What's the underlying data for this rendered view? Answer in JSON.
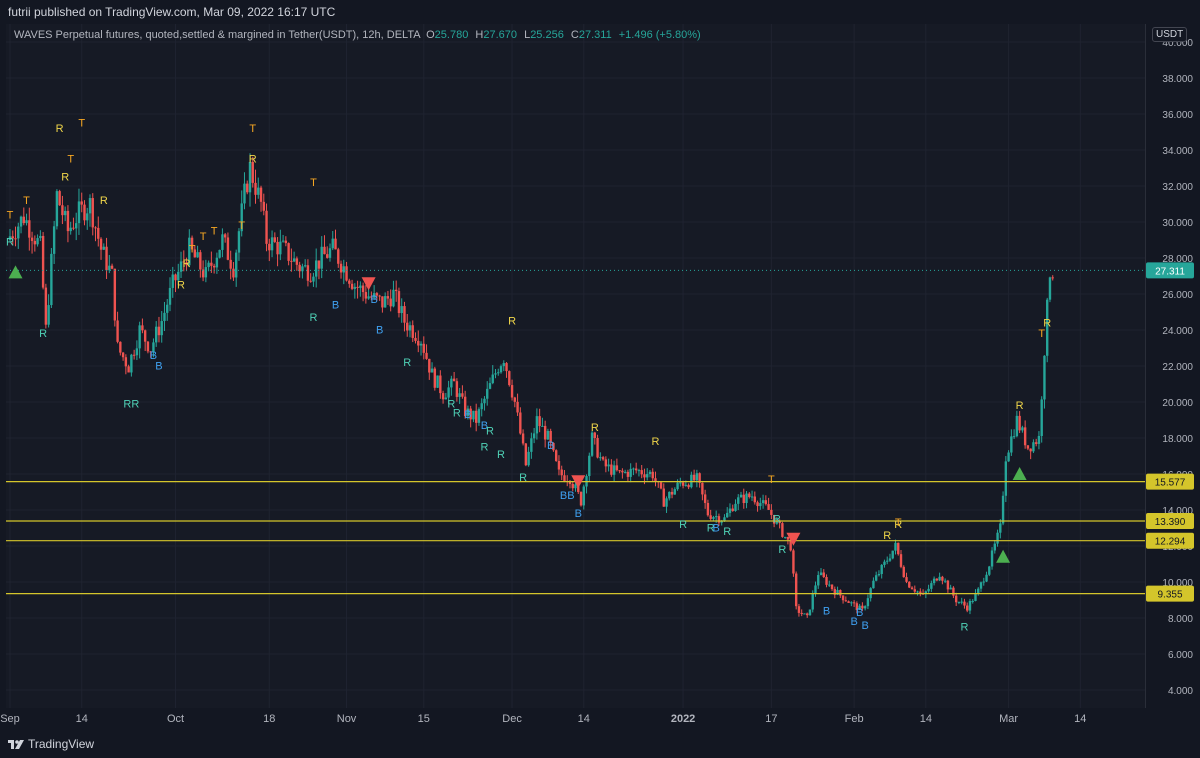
{
  "header": {
    "publisher": "futrii published on TradingView.com, Mar 09, 2022 16:17 UTC"
  },
  "legend": {
    "symbol": "WAVES Perpetual futures, quoted,settled & margined in Tether(USDT), 12h, DELTA",
    "o_label": "O",
    "o": "25.780",
    "h_label": "H",
    "h": "27.670",
    "l_label": "L",
    "l": "25.256",
    "c_label": "C",
    "c": "27.311",
    "change": "+1.496 (+5.80%)"
  },
  "currency": "USDT",
  "footer": {
    "brand": "TradingView"
  },
  "colors": {
    "up": "#26a69a",
    "down": "#ef5350",
    "level": "#d4c52b",
    "current": "#26a69a",
    "label_t": "#f5a623",
    "label_r_gold": "#f0d64a",
    "label_r_teal": "#4fd1b6",
    "label_b": "#3fa0f0"
  },
  "chart_data": {
    "type": "candlestick",
    "timeframe": "12h",
    "y_ticks": [
      4,
      6,
      8,
      10,
      12,
      14,
      16,
      18,
      20,
      22,
      24,
      26,
      28,
      30,
      32,
      34,
      36,
      38,
      40
    ],
    "y_tick_labels": [
      "4.000",
      "6.000",
      "8.000",
      "10.000",
      "12.000",
      "14.000",
      "16.000",
      "18.000",
      "20.000",
      "22.000",
      "24.000",
      "26.000",
      "28.000",
      "30.000",
      "32.000",
      "34.000",
      "36.000",
      "38.000",
      "40.000"
    ],
    "x_ticks": [
      {
        "label": "Sep",
        "x": "2021-09-01"
      },
      {
        "label": "14",
        "x": "2021-09-14"
      },
      {
        "label": "Oct",
        "x": "2021-10-01"
      },
      {
        "label": "18",
        "x": "2021-10-18"
      },
      {
        "label": "Nov",
        "x": "2021-11-01"
      },
      {
        "label": "15",
        "x": "2021-11-15"
      },
      {
        "label": "Dec",
        "x": "2021-12-01"
      },
      {
        "label": "14",
        "x": "2021-12-14"
      },
      {
        "label": "2022",
        "x": "2022-01-01"
      },
      {
        "label": "17",
        "x": "2022-01-17"
      },
      {
        "label": "Feb",
        "x": "2022-02-01"
      },
      {
        "label": "14",
        "x": "2022-02-14"
      },
      {
        "label": "Mar",
        "x": "2022-03-01"
      },
      {
        "label": "14",
        "x": "2022-03-14"
      }
    ],
    "x_range": [
      "2021-09-01",
      "2022-03-25"
    ],
    "ylim": [
      3.0,
      41.0
    ],
    "horizontal_levels": [
      {
        "value": 15.577,
        "label": "15.577"
      },
      {
        "value": 13.39,
        "label": "13.390"
      },
      {
        "value": 12.294,
        "label": "12.294"
      },
      {
        "value": 9.355,
        "label": "9.355"
      }
    ],
    "current_price": {
      "value": 27.311,
      "label": "27.311"
    },
    "trend": [
      [
        "2021-09-01",
        29.0
      ],
      [
        "2021-09-04",
        30.3
      ],
      [
        "2021-09-07",
        28.6
      ],
      [
        "2021-09-08",
        24.0
      ],
      [
        "2021-09-10",
        31.5
      ],
      [
        "2021-09-12",
        29.5
      ],
      [
        "2021-09-14",
        30.5
      ],
      [
        "2021-09-16",
        31.0
      ],
      [
        "2021-09-18",
        28.5
      ],
      [
        "2021-09-20",
        27.0
      ],
      [
        "2021-09-21",
        23.0
      ],
      [
        "2021-09-23",
        22.0
      ],
      [
        "2021-09-25",
        24.0
      ],
      [
        "2021-09-27",
        23.0
      ],
      [
        "2021-09-29",
        24.5
      ],
      [
        "2021-10-01",
        26.5
      ],
      [
        "2021-10-04",
        28.5
      ],
      [
        "2021-10-07",
        27.0
      ],
      [
        "2021-10-10",
        29.0
      ],
      [
        "2021-10-12",
        27.5
      ],
      [
        "2021-10-14",
        31.5
      ],
      [
        "2021-10-15",
        33.0
      ],
      [
        "2021-10-17",
        31.0
      ],
      [
        "2021-10-18",
        29.0
      ],
      [
        "2021-10-21",
        28.5
      ],
      [
        "2021-10-24",
        27.5
      ],
      [
        "2021-10-26",
        27.3
      ],
      [
        "2021-10-28",
        28.0
      ],
      [
        "2021-10-30",
        28.5
      ],
      [
        "2021-11-01",
        27.5
      ],
      [
        "2021-11-03",
        26.5
      ],
      [
        "2021-11-06",
        25.8
      ],
      [
        "2021-11-08",
        25.5
      ],
      [
        "2021-11-10",
        26.0
      ],
      [
        "2021-11-12",
        24.5
      ],
      [
        "2021-11-15",
        23.5
      ],
      [
        "2021-11-17",
        21.5
      ],
      [
        "2021-11-19",
        20.5
      ],
      [
        "2021-11-21",
        21.0
      ],
      [
        "2021-11-23",
        19.5
      ],
      [
        "2021-11-25",
        19.0
      ],
      [
        "2021-11-27",
        20.5
      ],
      [
        "2021-11-29",
        22.0
      ],
      [
        "2021-11-30",
        22.5
      ],
      [
        "2021-12-02",
        20.0
      ],
      [
        "2021-12-04",
        16.5
      ],
      [
        "2021-12-06",
        19.0
      ],
      [
        "2021-12-08",
        18.0
      ],
      [
        "2021-12-10",
        16.0
      ],
      [
        "2021-12-12",
        15.8
      ],
      [
        "2021-12-14",
        14.5
      ],
      [
        "2021-12-16",
        18.0
      ],
      [
        "2021-12-18",
        16.5
      ],
      [
        "2021-12-21",
        16.0
      ],
      [
        "2021-12-24",
        16.2
      ],
      [
        "2021-12-27",
        16.0
      ],
      [
        "2021-12-29",
        14.5
      ],
      [
        "2022-01-01",
        15.5
      ],
      [
        "2022-01-04",
        15.7
      ],
      [
        "2022-01-06",
        13.8
      ],
      [
        "2022-01-09",
        13.5
      ],
      [
        "2022-01-11",
        14.5
      ],
      [
        "2022-01-14",
        14.8
      ],
      [
        "2022-01-17",
        14.0
      ],
      [
        "2022-01-19",
        13.0
      ],
      [
        "2022-01-21",
        12.0
      ],
      [
        "2022-01-22",
        8.5
      ],
      [
        "2022-01-24",
        8.0
      ],
      [
        "2022-01-26",
        10.5
      ],
      [
        "2022-01-29",
        9.5
      ],
      [
        "2022-02-01",
        8.8
      ],
      [
        "2022-02-03",
        8.4
      ],
      [
        "2022-02-05",
        10.0
      ],
      [
        "2022-02-07",
        11.0
      ],
      [
        "2022-02-09",
        12.0
      ],
      [
        "2022-02-11",
        10.0
      ],
      [
        "2022-02-14",
        9.2
      ],
      [
        "2022-02-17",
        10.5
      ],
      [
        "2022-02-20",
        9.0
      ],
      [
        "2022-02-22",
        8.6
      ],
      [
        "2022-02-24",
        9.5
      ],
      [
        "2022-02-26",
        11.0
      ],
      [
        "2022-02-28",
        13.0
      ],
      [
        "2022-03-01",
        17.0
      ],
      [
        "2022-03-03",
        19.0
      ],
      [
        "2022-03-05",
        17.5
      ],
      [
        "2022-03-07",
        18.0
      ],
      [
        "2022-03-08",
        23.0
      ],
      [
        "2022-03-09",
        27.311
      ]
    ],
    "signals": [
      {
        "x": "2021-09-01",
        "y": 30.2,
        "text": "T",
        "type": "T"
      },
      {
        "x": "2021-09-04",
        "y": 31.0,
        "text": "T",
        "type": "T"
      },
      {
        "x": "2021-09-10",
        "y": 35.0,
        "text": "R",
        "type": "Rg"
      },
      {
        "x": "2021-09-12",
        "y": 33.3,
        "text": "T",
        "type": "T"
      },
      {
        "x": "2021-09-14",
        "y": 35.3,
        "text": "T",
        "type": "T"
      },
      {
        "x": "2021-09-11",
        "y": 32.3,
        "text": "R",
        "type": "Rg"
      },
      {
        "x": "2021-09-18",
        "y": 31.0,
        "text": "R",
        "type": "Rg"
      },
      {
        "x": "2021-09-01",
        "y": 28.7,
        "text": "R",
        "type": "Rt"
      },
      {
        "x": "2021-09-07",
        "y": 23.6,
        "text": "R",
        "type": "Rt"
      },
      {
        "x": "2021-09-23",
        "y": 19.7,
        "text": "RR",
        "type": "Rt"
      },
      {
        "x": "2021-09-27",
        "y": 22.4,
        "text": "B",
        "type": "B"
      },
      {
        "x": "2021-09-28",
        "y": 21.8,
        "text": "B",
        "type": "B"
      },
      {
        "x": "2021-10-04",
        "y": 28.3,
        "text": "T",
        "type": "T"
      },
      {
        "x": "2021-10-06",
        "y": 29.0,
        "text": "T",
        "type": "T"
      },
      {
        "x": "2021-10-03",
        "y": 27.5,
        "text": "R",
        "type": "Rg"
      },
      {
        "x": "2021-10-02",
        "y": 26.3,
        "text": "R",
        "type": "Rg"
      },
      {
        "x": "2021-10-08",
        "y": 29.3,
        "text": "T",
        "type": "T"
      },
      {
        "x": "2021-10-13",
        "y": 29.6,
        "text": "T",
        "type": "T"
      },
      {
        "x": "2021-10-15",
        "y": 35.0,
        "text": "T",
        "type": "T"
      },
      {
        "x": "2021-10-15",
        "y": 33.3,
        "text": "R",
        "type": "Rg"
      },
      {
        "x": "2021-10-26",
        "y": 32.0,
        "text": "T",
        "type": "T"
      },
      {
        "x": "2021-10-26",
        "y": 24.5,
        "text": "R",
        "type": "Rt"
      },
      {
        "x": "2021-10-30",
        "y": 25.2,
        "text": "B",
        "type": "B"
      },
      {
        "x": "2021-11-06",
        "y": 25.5,
        "text": "B",
        "type": "B"
      },
      {
        "x": "2021-11-07",
        "y": 23.8,
        "text": "B",
        "type": "B"
      },
      {
        "x": "2021-11-12",
        "y": 22.0,
        "text": "R",
        "type": "Rt"
      },
      {
        "x": "2021-11-20",
        "y": 19.7,
        "text": "R",
        "type": "Rt"
      },
      {
        "x": "2021-11-21",
        "y": 19.2,
        "text": "R",
        "type": "Rt"
      },
      {
        "x": "2021-11-23",
        "y": 19.1,
        "text": "B",
        "type": "B"
      },
      {
        "x": "2021-11-26",
        "y": 18.5,
        "text": "B",
        "type": "B"
      },
      {
        "x": "2021-11-27",
        "y": 18.2,
        "text": "R",
        "type": "Rt"
      },
      {
        "x": "2021-11-26",
        "y": 17.3,
        "text": "R",
        "type": "Rt"
      },
      {
        "x": "2021-11-29",
        "y": 16.9,
        "text": "R",
        "type": "Rt"
      },
      {
        "x": "2021-12-01",
        "y": 24.3,
        "text": "R",
        "type": "Rg"
      },
      {
        "x": "2021-12-03",
        "y": 15.6,
        "text": "R",
        "type": "Rt"
      },
      {
        "x": "2021-12-08",
        "y": 17.4,
        "text": "B",
        "type": "B"
      },
      {
        "x": "2021-12-11",
        "y": 14.6,
        "text": "BB",
        "type": "B"
      },
      {
        "x": "2021-12-13",
        "y": 13.6,
        "text": "B",
        "type": "B"
      },
      {
        "x": "2021-12-16",
        "y": 18.4,
        "text": "R",
        "type": "Rg"
      },
      {
        "x": "2021-12-27",
        "y": 17.6,
        "text": "R",
        "type": "Rg"
      },
      {
        "x": "2022-01-01",
        "y": 13.0,
        "text": "R",
        "type": "Rt"
      },
      {
        "x": "2022-01-06",
        "y": 12.8,
        "text": "R",
        "type": "Rt"
      },
      {
        "x": "2022-01-07",
        "y": 12.8,
        "text": "B",
        "type": "B"
      },
      {
        "x": "2022-01-09",
        "y": 12.6,
        "text": "R",
        "type": "Rt"
      },
      {
        "x": "2022-01-17",
        "y": 15.5,
        "text": "T",
        "type": "T"
      },
      {
        "x": "2022-01-18",
        "y": 13.3,
        "text": "R",
        "type": "Rt"
      },
      {
        "x": "2022-01-19",
        "y": 11.6,
        "text": "R",
        "type": "Rt"
      },
      {
        "x": "2022-01-27",
        "y": 8.2,
        "text": "B",
        "type": "B"
      },
      {
        "x": "2022-02-01",
        "y": 7.6,
        "text": "B",
        "type": "B"
      },
      {
        "x": "2022-02-02",
        "y": 8.1,
        "text": "B",
        "type": "B"
      },
      {
        "x": "2022-02-03",
        "y": 7.4,
        "text": "B",
        "type": "B"
      },
      {
        "x": "2022-02-07",
        "y": 12.4,
        "text": "R",
        "type": "Rg"
      },
      {
        "x": "2022-02-09",
        "y": 13.0,
        "text": "R",
        "type": "Rg"
      },
      {
        "x": "2022-02-09",
        "y": 13.1,
        "text": "T",
        "type": "T"
      },
      {
        "x": "2022-02-21",
        "y": 7.3,
        "text": "R",
        "type": "Rt"
      },
      {
        "x": "2022-03-03",
        "y": 19.6,
        "text": "R",
        "type": "Rg"
      },
      {
        "x": "2022-03-07",
        "y": 23.6,
        "text": "T",
        "type": "T"
      },
      {
        "x": "2022-03-08",
        "y": 24.2,
        "text": "R",
        "type": "Rg"
      }
    ],
    "arrows": [
      {
        "x": "2021-09-02",
        "y": 27.2,
        "dir": "up"
      },
      {
        "x": "2021-11-05",
        "y": 26.6,
        "dir": "down"
      },
      {
        "x": "2021-12-13",
        "y": 15.6,
        "dir": "down"
      },
      {
        "x": "2022-01-21",
        "y": 12.4,
        "dir": "down"
      },
      {
        "x": "2022-02-28",
        "y": 11.4,
        "dir": "up"
      },
      {
        "x": "2022-03-03",
        "y": 16.0,
        "dir": "up"
      }
    ]
  }
}
